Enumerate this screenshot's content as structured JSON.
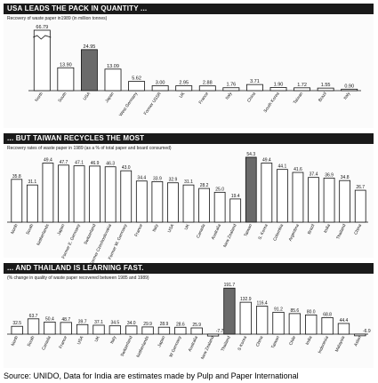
{
  "chart_data": [
    {
      "type": "bar",
      "title": "USA LEADS THE PACK IN QUANTITY ...",
      "subtitle": "Recovery of waste paper in1989 (in million tonnes)",
      "categories": [
        "North",
        "South",
        "USA",
        "Japan",
        "West Germany",
        "Former USSR",
        "UK",
        "France",
        "Italy",
        "China",
        "South Korea",
        "Taiwan",
        "Brazil",
        "Italy"
      ],
      "values": [
        66.79,
        13.9,
        24.95,
        13.09,
        5.62,
        3.0,
        2.95,
        2.88,
        1.76,
        3.71,
        1.9,
        1.72,
        1.55,
        0.9
      ],
      "value_labels": [
        "66.79",
        "13.90",
        "24.95",
        "13.09",
        "5.62",
        "3.00",
        "2.95",
        "2.88",
        "1.76",
        "3.71",
        "1.90",
        "1.72",
        "1.55",
        "0.90"
      ],
      "highlight": [
        "USA"
      ],
      "ylim": [
        0,
        40
      ]
    },
    {
      "type": "bar",
      "title": "... BUT TAIWAN RECYCLES THE MOST",
      "subtitle": "Recovery rates of waste paper in 1989 (as a % of total paper and board consumed)",
      "categories": [
        "North",
        "South",
        "Netherlands",
        "Japan",
        "Former E. Germany",
        "Switzerland",
        "Former Czechoslovakia",
        "Former W. Germany",
        "France",
        "Italy",
        "USA",
        "UK",
        "Canada",
        "Australia",
        "New Zealand",
        "Taiwan",
        "S. Korea",
        "Colombia",
        "Argentina",
        "Brazil",
        "India",
        "Thailand",
        "China"
      ],
      "values": [
        35.8,
        31.1,
        49.4,
        47.7,
        47.1,
        46.9,
        46.3,
        43.0,
        34.4,
        33.9,
        32.9,
        31.1,
        28.2,
        25.0,
        19.4,
        54.3,
        49.4,
        44.1,
        41.6,
        37.4,
        36.9,
        34.8,
        26.7
      ],
      "value_labels": [
        "35.8",
        "31.1",
        "49.4",
        "47.7",
        "47.1",
        "46.9",
        "46.3",
        "43.0",
        "34.4",
        "33.9",
        "32.9",
        "31.1",
        "28.2",
        "25.0",
        "19.4",
        "54.3",
        "49.4",
        "44.1",
        "41.6",
        "37.4",
        "36.9",
        "34.8",
        "26.7"
      ],
      "highlight": [
        "Taiwan"
      ],
      "ylim": [
        0,
        55
      ]
    },
    {
      "type": "bar",
      "title": "... AND THAILAND IS LEARNING FAST.",
      "subtitle": "(% change in quality of waste paper recovered between 1985 and 1989)",
      "categories": [
        "North",
        "South",
        "Canada",
        "France",
        "USA",
        "UK",
        "Italy",
        "Switzerland",
        "Netherlands",
        "Japan",
        "W Germany",
        "Australia",
        "New Zealand",
        "Thailand",
        "S Korea",
        "China",
        "Taiwan",
        "Chile",
        "India",
        "Indonesia",
        "Malaysia",
        "Aslan"
      ],
      "values": [
        32.5,
        63.7,
        50.4,
        48.7,
        39.7,
        37.1,
        34.5,
        34.0,
        29.9,
        28.9,
        28.6,
        25.9,
        -7.7,
        191.7,
        132.9,
        116.4,
        91.2,
        85.6,
        80.0,
        68.8,
        44.4,
        -6.9
      ],
      "value_labels": [
        "32.5",
        "63.7",
        "50.4",
        "48.7",
        "39.7",
        "37.1",
        "34.5",
        "34.0",
        "29.9",
        "28.9",
        "28.6",
        "25.9",
        "-7.7",
        "191.7",
        "132.9",
        "116.4",
        "91.2",
        "85.6",
        "80.0",
        "68.8",
        "44.4",
        "-6.9"
      ],
      "highlight": [
        "Thailand"
      ],
      "ylim": [
        -10,
        200
      ]
    }
  ],
  "source": "Source: UNIDO, Data for India are estimates made by Pulp and Paper International",
  "colors": {
    "bar_fill": "#ffffff",
    "highlight_fill": "#6a6a6a",
    "banner_bg": "#1a1a1a",
    "outline": "#111111"
  }
}
